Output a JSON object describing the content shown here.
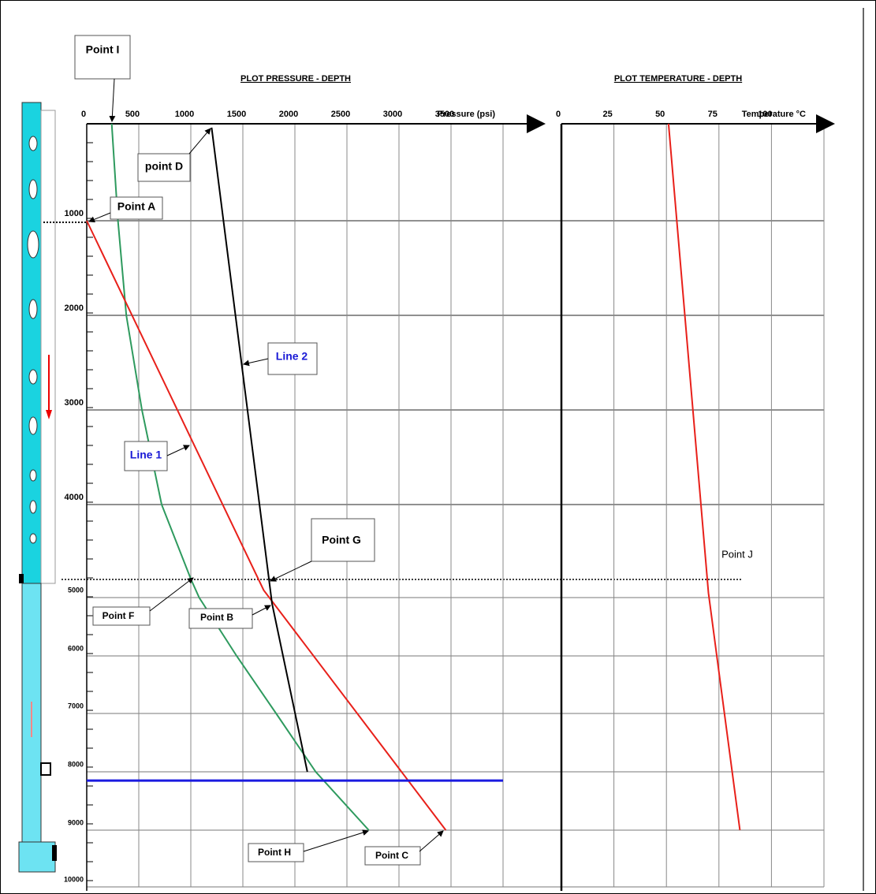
{
  "chart_data": [
    {
      "type": "line",
      "title": "PLOT PRESSURE - DEPTH",
      "x_label": "Pressure (psi)",
      "xlim": [
        0,
        4000
      ],
      "xticks": [
        0,
        500,
        1000,
        1500,
        2000,
        2500,
        3000,
        3500
      ],
      "ylim": [
        0,
        10000
      ],
      "yticks": [
        1000,
        2000,
        3000,
        4000,
        5000,
        6000,
        7000,
        8000,
        9000,
        10000
      ],
      "grid": true,
      "series": [
        {
          "color": "#2e9a5e",
          "x": [
            240,
            300,
            380,
            530,
            720,
            1000,
            1080,
            1440,
            1820,
            2200,
            2710
          ],
          "values": [
            0,
            1000,
            2000,
            3000,
            4000,
            4800,
            5000,
            6000,
            7000,
            8000,
            9000
          ]
        },
        {
          "color": "#e8201a",
          "x": [
            0,
            1700,
            3450
          ],
          "values": [
            1000,
            4920,
            9000
          ]
        },
        {
          "color": "#000000",
          "x": [
            1200,
            1780,
            2120
          ],
          "values": [
            40,
            5100,
            8000
          ]
        },
        {
          "color": "#1a1ae0",
          "x": [
            0,
            4000
          ],
          "values": [
            8150,
            8150
          ]
        }
      ],
      "annotations": [
        "Point I",
        "point D",
        "Point A",
        "Line 2",
        "Line 1",
        "Point G",
        "Point F",
        "Point B",
        "Point H",
        "Point C"
      ]
    },
    {
      "type": "line",
      "title": "PLOT TEMPERATURE - DEPTH",
      "x_label": "Temperature °C",
      "xlim": [
        0,
        125
      ],
      "xticks": [
        0,
        25,
        50,
        75,
        100
      ],
      "ylim": [
        0,
        10000
      ],
      "grid": true,
      "series": [
        {
          "color": "#e8201a",
          "x": [
            51,
            70,
            85
          ],
          "values": [
            0,
            4950,
            9000
          ]
        }
      ],
      "annotations": [
        "Point J"
      ]
    }
  ]
}
